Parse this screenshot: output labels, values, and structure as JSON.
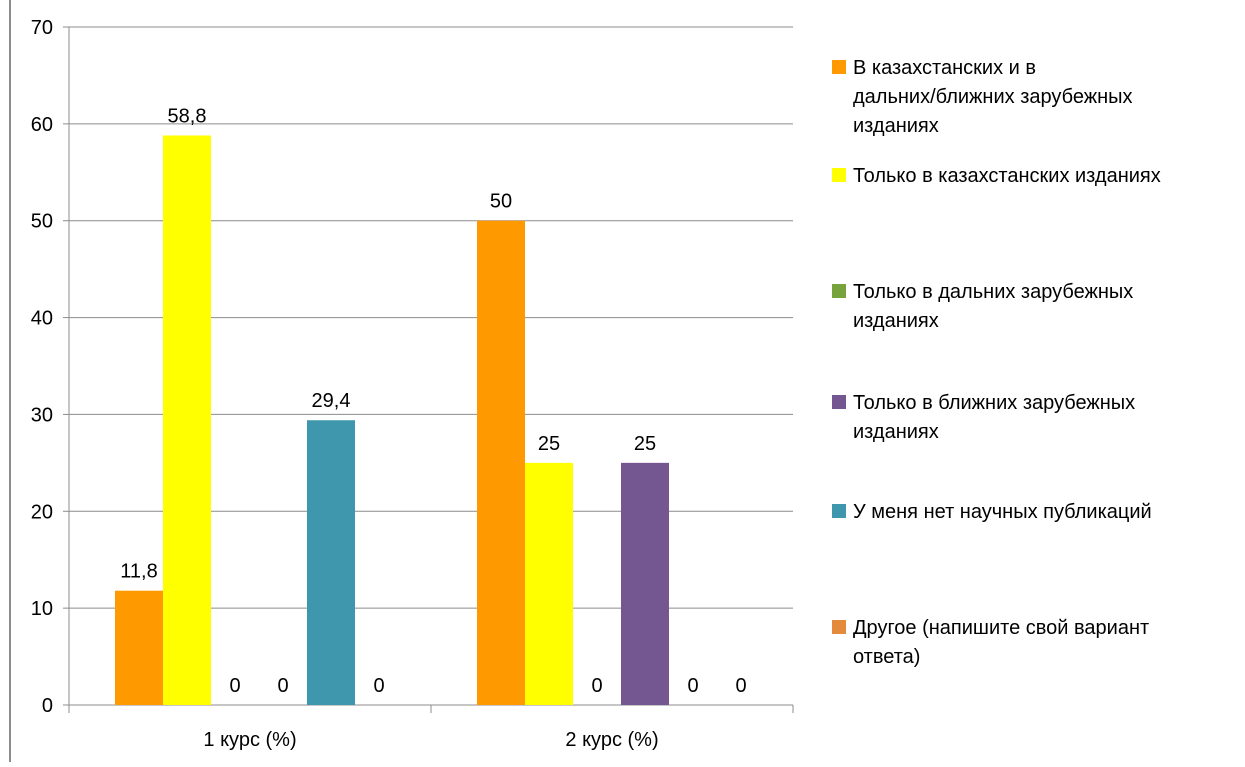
{
  "chart_data": {
    "type": "bar",
    "title": "",
    "xlabel": "",
    "ylabel": "",
    "ylim": [
      0,
      70
    ],
    "yticks": [
      0,
      10,
      20,
      30,
      40,
      50,
      60,
      70
    ],
    "grid": true,
    "legend_position": "right",
    "categories": [
      "1 курс (%)",
      "2 курс (%)"
    ],
    "series": [
      {
        "name": "В казахстанских и в дальних/ближних зарубежных изданиях",
        "legend_lines": [
          "В казахстанских и в",
          "дальних/ближних зарубежных",
          "изданиях"
        ],
        "color": "#ff9900",
        "values": [
          11.8,
          50
        ],
        "labels": [
          "11,8",
          "50"
        ]
      },
      {
        "name": "Только в казахстанских изданиях",
        "legend_lines": [
          "Только в казахстанских изданиях"
        ],
        "color": "#ffff00",
        "values": [
          58.8,
          25
        ],
        "labels": [
          "58,8",
          "25"
        ]
      },
      {
        "name": "Только в дальних зарубежных изданиях",
        "legend_lines": [
          "Только в дальних зарубежных",
          "изданиях"
        ],
        "color": "#77a33c",
        "values": [
          0,
          0
        ],
        "labels": [
          "0",
          "0"
        ]
      },
      {
        "name": "Только в ближних зарубежных изданиях",
        "legend_lines": [
          "Только в ближних зарубежных",
          "изданиях"
        ],
        "color": "#745690",
        "values": [
          0,
          25
        ],
        "labels": [
          "0",
          "25"
        ]
      },
      {
        "name": "У меня нет научных публикаций",
        "legend_lines": [
          "У меня нет научных публикаций"
        ],
        "color": "#3f97ad",
        "values": [
          29.4,
          0
        ],
        "labels": [
          "29,4",
          "0"
        ]
      },
      {
        "name": "Другое (напишите свой вариант ответа)",
        "legend_lines": [
          "Другое (напишите свой вариант",
          "ответа)"
        ],
        "color": "#e38a3c",
        "values": [
          0,
          0
        ],
        "labels": [
          "0",
          "0"
        ]
      }
    ]
  }
}
